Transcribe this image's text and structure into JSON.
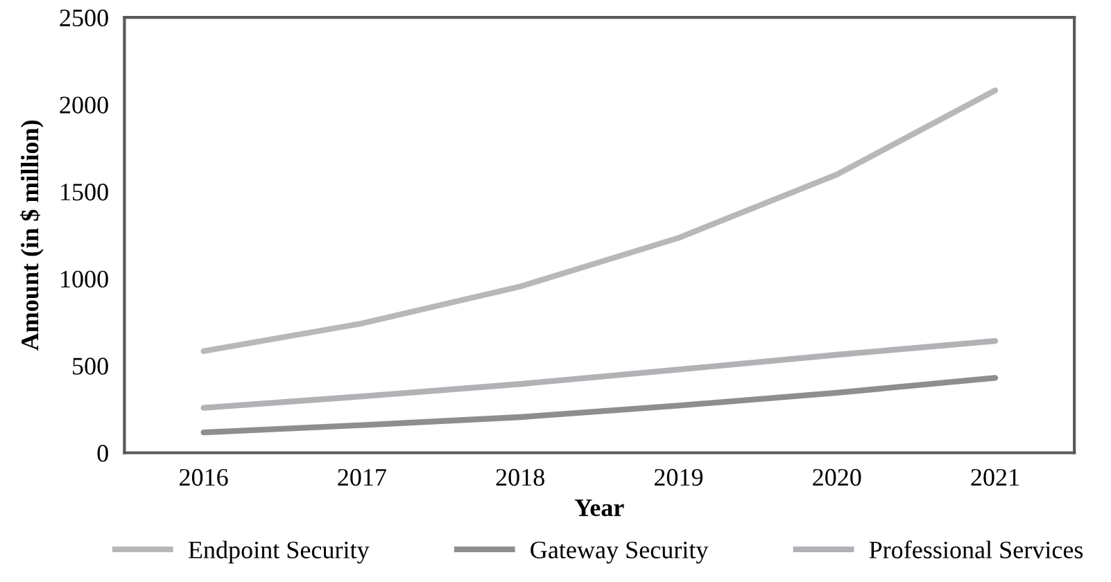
{
  "chart_data": {
    "type": "line",
    "xlabel": "Year",
    "ylabel": "Amount (in $ million)",
    "categories": [
      "2016",
      "2017",
      "2018",
      "2019",
      "2020",
      "2021"
    ],
    "series": [
      {
        "name": "Endpoint Security",
        "color": "#b8b8b8",
        "values": [
          584,
          743,
          955,
          1234,
          1598,
          2081
        ]
      },
      {
        "name": "Gateway Security",
        "color": "#8e8e8e",
        "values": [
          117,
          159,
          205,
          271,
          345,
          430
        ]
      },
      {
        "name": "Professional Services",
        "color": "#b2b2b6",
        "values": [
          258,
          324,
          395,
          478,
          563,
          642
        ]
      }
    ],
    "ylim": [
      0,
      2500
    ],
    "yticks": [
      0,
      500,
      1000,
      1500,
      2000,
      2500
    ],
    "grid": false,
    "legend": "bottom",
    "line_style": "solid",
    "marker": "none"
  }
}
